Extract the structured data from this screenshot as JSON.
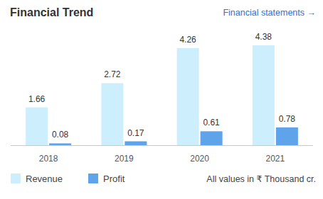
{
  "chart_data": {
    "type": "bar",
    "title": "Financial Trend",
    "link": "Financial statements →",
    "note": "All values in ₹ Thousand cr.",
    "categories": [
      "2018",
      "2019",
      "2020",
      "2021"
    ],
    "series": [
      {
        "name": "Revenue",
        "color": "#cdeefc",
        "values": [
          1.66,
          2.72,
          4.26,
          4.38
        ]
      },
      {
        "name": "Profit",
        "color": "#5fa3ea",
        "values": [
          0.08,
          0.17,
          0.61,
          0.78
        ]
      }
    ],
    "ylim": [
      0,
      4.38
    ],
    "data_labels": true,
    "tick_labels": "x",
    "legend": "bottom"
  }
}
